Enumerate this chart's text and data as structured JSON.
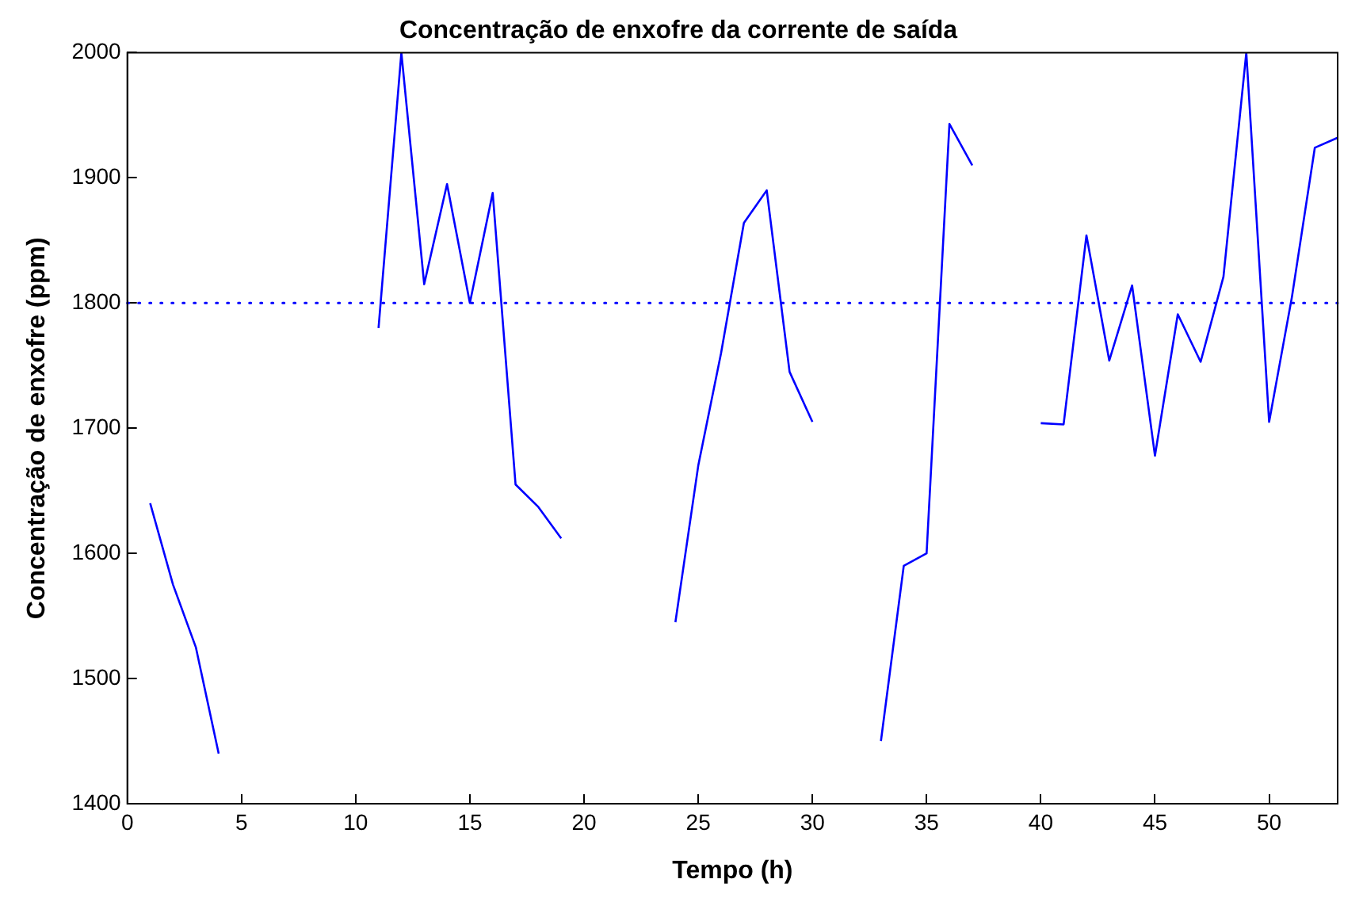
{
  "chart_data": {
    "type": "line",
    "title": "Concentração de enxofre da corrente de saída",
    "xlabel": "Tempo (h)",
    "ylabel": "Concentração de enxofre (ppm)",
    "x": [
      1,
      2,
      3,
      4,
      5,
      6,
      7,
      8,
      9,
      10,
      11,
      12,
      13,
      14,
      15,
      16,
      17,
      18,
      19,
      20,
      21,
      22,
      23,
      24,
      25,
      26,
      27,
      28,
      29,
      30,
      31,
      32,
      33,
      34,
      35,
      36,
      37,
      38,
      39,
      40,
      41,
      42,
      43,
      44,
      45,
      46,
      47,
      48,
      49,
      50,
      51,
      52,
      53
    ],
    "series": [
      {
        "color": "#0000ff",
        "values": [
          1640,
          1575,
          1525,
          1440,
          null,
          null,
          null,
          null,
          null,
          null,
          1780,
          2000,
          1815,
          1895,
          1800,
          1888,
          1655,
          1637,
          1612,
          null,
          null,
          null,
          null,
          1545,
          1670,
          1760,
          1864,
          1890,
          1745,
          1705,
          null,
          null,
          1450,
          1590,
          1600,
          1943,
          1910,
          null,
          null,
          1704,
          1703,
          1854,
          1754,
          1814,
          1678,
          1791,
          1753,
          1821,
          2000,
          1705,
          1805,
          1924,
          1932
        ]
      }
    ],
    "xlim": [
      0,
      53
    ],
    "xticks": [
      0,
      5,
      10,
      15,
      20,
      25,
      30,
      35,
      40,
      45,
      50
    ],
    "ylim": [
      1400,
      2000
    ],
    "yticks": [
      1400,
      1500,
      1600,
      1700,
      1800,
      1900,
      2000
    ],
    "ref_lines": [
      {
        "axis": "y",
        "value": 1800,
        "color": "#0000ff",
        "line_style": "dotted"
      }
    ],
    "grid": false,
    "legend": false,
    "marker": "none",
    "line_style": "solid"
  }
}
